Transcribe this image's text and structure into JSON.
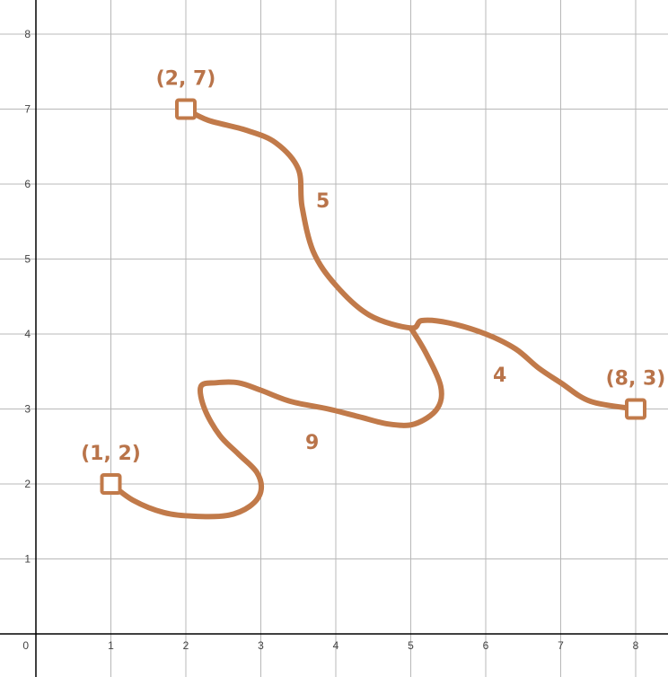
{
  "graph": {
    "x_ticks": [
      "1",
      "2",
      "3",
      "4",
      "5",
      "6",
      "7",
      "8"
    ],
    "y_ticks": [
      "1",
      "2",
      "3",
      "4",
      "5",
      "6",
      "7",
      "8"
    ],
    "origin_label": "0",
    "colors": {
      "curve": "#c17a4a",
      "label": "#b9744a",
      "grid": "#b8b8b8",
      "axis": "#000000"
    }
  },
  "points": [
    {
      "label": "(1, 2)",
      "x": 1,
      "y": 2
    },
    {
      "label": "(2, 7)",
      "x": 2,
      "y": 7
    },
    {
      "label": "(8, 3)",
      "x": 8,
      "y": 3
    }
  ],
  "curve_weights": [
    "5",
    "9",
    "4"
  ],
  "curves": [
    {
      "from": "(2, 7)",
      "to": "(8, 3)",
      "points": [
        [
          2,
          7
        ],
        [
          2.3,
          6.85
        ],
        [
          2.8,
          6.72
        ],
        [
          3.2,
          6.55
        ],
        [
          3.5,
          6.2
        ],
        [
          3.55,
          5.7
        ],
        [
          3.7,
          5.1
        ],
        [
          4.0,
          4.65
        ],
        [
          4.45,
          4.25
        ],
        [
          5.0,
          4.08
        ],
        [
          5.15,
          4.18
        ],
        [
          5.5,
          4.15
        ],
        [
          6.0,
          4.0
        ],
        [
          6.4,
          3.8
        ],
        [
          6.7,
          3.55
        ],
        [
          7.0,
          3.35
        ],
        [
          7.4,
          3.1
        ],
        [
          8,
          3
        ]
      ]
    },
    {
      "from": "(8, 3)",
      "to": "(1, 2)",
      "points": [
        [
          5.0,
          4.08
        ],
        [
          5.2,
          3.75
        ],
        [
          5.4,
          3.3
        ],
        [
          5.35,
          3.0
        ],
        [
          5.05,
          2.8
        ],
        [
          4.7,
          2.8
        ],
        [
          4.3,
          2.9
        ],
        [
          3.9,
          3.0
        ],
        [
          3.4,
          3.1
        ],
        [
          3.0,
          3.25
        ],
        [
          2.7,
          3.35
        ],
        [
          2.4,
          3.35
        ],
        [
          2.2,
          3.3
        ],
        [
          2.25,
          3.0
        ],
        [
          2.45,
          2.65
        ],
        [
          2.7,
          2.4
        ],
        [
          2.95,
          2.15
        ],
        [
          3.0,
          1.9
        ],
        [
          2.85,
          1.7
        ],
        [
          2.55,
          1.58
        ],
        [
          2.1,
          1.57
        ],
        [
          1.7,
          1.62
        ],
        [
          1.3,
          1.78
        ],
        [
          1,
          2
        ]
      ]
    }
  ]
}
